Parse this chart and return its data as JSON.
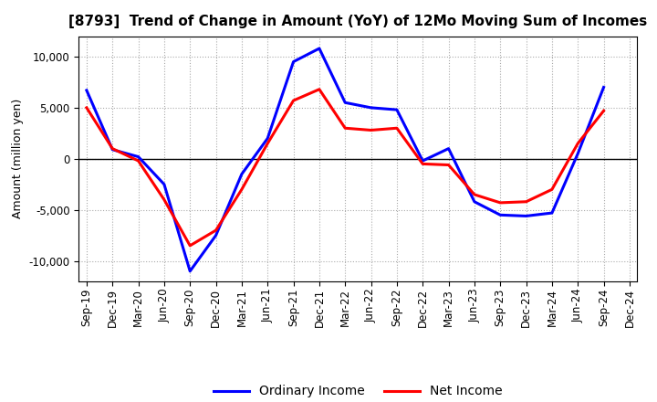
{
  "title": "[8793]  Trend of Change in Amount (YoY) of 12Mo Moving Sum of Incomes",
  "ylabel": "Amount (million yen)",
  "x_labels": [
    "Sep-19",
    "Dec-19",
    "Mar-20",
    "Jun-20",
    "Sep-20",
    "Dec-20",
    "Mar-21",
    "Jun-21",
    "Sep-21",
    "Dec-21",
    "Mar-22",
    "Jun-22",
    "Sep-22",
    "Dec-22",
    "Mar-23",
    "Jun-23",
    "Sep-23",
    "Dec-23",
    "Mar-24",
    "Jun-24",
    "Sep-24",
    "Dec-24"
  ],
  "ordinary_income": [
    6700,
    900,
    200,
    -2500,
    -11000,
    -7500,
    -1500,
    2000,
    9500,
    10800,
    5500,
    5000,
    4800,
    -200,
    1000,
    -4200,
    -5500,
    -5600,
    -5300,
    500,
    7000,
    null
  ],
  "net_income": [
    5000,
    1000,
    -200,
    -4000,
    -8500,
    -7000,
    -3000,
    1500,
    5700,
    6800,
    3000,
    2800,
    3000,
    -500,
    -600,
    -3500,
    -4300,
    -4200,
    -3000,
    1500,
    4700,
    null
  ],
  "ordinary_color": "#0000ff",
  "net_color": "#ff0000",
  "ylim": [
    -12000,
    12000
  ],
  "yticks": [
    -10000,
    -5000,
    0,
    5000,
    10000
  ],
  "background_color": "#ffffff",
  "plot_bg_color": "#ffffff",
  "grid_color": "#aaaaaa",
  "title_fontsize": 11,
  "legend_fontsize": 10,
  "axis_fontsize": 9,
  "tick_fontsize": 8.5
}
